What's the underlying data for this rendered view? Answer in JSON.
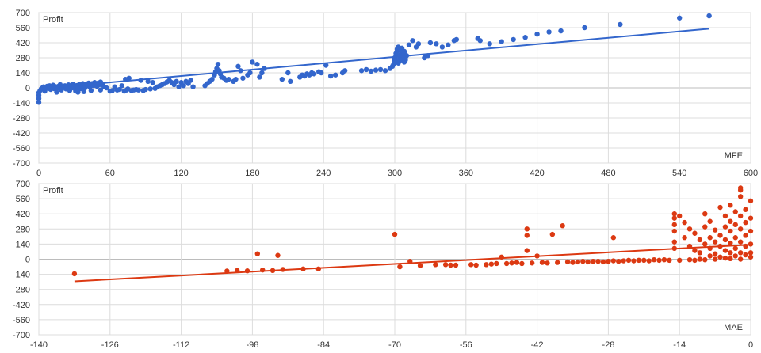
{
  "chart_data": [
    {
      "type": "scatter",
      "title": "",
      "ylabel": "Profit",
      "xlabel": "MFE",
      "xlim": [
        0,
        600
      ],
      "ylim": [
        -700,
        700
      ],
      "x_ticks": [
        0,
        60,
        120,
        180,
        240,
        300,
        360,
        420,
        480,
        540,
        600
      ],
      "y_ticks": [
        700,
        560,
        420,
        280,
        140,
        0,
        -140,
        -280,
        -420,
        -560,
        -700
      ],
      "x_tick_labels": [
        "0",
        "60",
        "120",
        "180",
        "240",
        "300",
        "360",
        "420",
        "480",
        "540",
        "600"
      ],
      "y_tick_labels": [
        "700",
        "560",
        "420",
        "280",
        "140",
        "0",
        "-140",
        "-280",
        "-420",
        "-560",
        "-700"
      ],
      "grid": true,
      "color": "#3366cc",
      "trendline": {
        "x": [
          0,
          565
        ],
        "y": [
          -8,
          550
        ]
      },
      "points": [
        [
          0,
          -135
        ],
        [
          0,
          -100
        ],
        [
          0,
          -70
        ],
        [
          0,
          -45
        ],
        [
          1,
          -25
        ],
        [
          2,
          -10
        ],
        [
          3,
          0
        ],
        [
          4,
          10
        ],
        [
          5,
          -30
        ],
        [
          6,
          5
        ],
        [
          7,
          15
        ],
        [
          8,
          -5
        ],
        [
          9,
          20
        ],
        [
          10,
          -15
        ],
        [
          11,
          8
        ],
        [
          12,
          25
        ],
        [
          13,
          -8
        ],
        [
          14,
          12
        ],
        [
          15,
          -40
        ],
        [
          16,
          0
        ],
        [
          17,
          18
        ],
        [
          18,
          30
        ],
        [
          19,
          -20
        ],
        [
          20,
          10
        ],
        [
          22,
          20
        ],
        [
          23,
          -10
        ],
        [
          24,
          5
        ],
        [
          25,
          28
        ],
        [
          26,
          -25
        ],
        [
          27,
          15
        ],
        [
          28,
          0
        ],
        [
          29,
          35
        ],
        [
          30,
          10
        ],
        [
          31,
          -18
        ],
        [
          32,
          22
        ],
        [
          33,
          5
        ],
        [
          34,
          30
        ],
        [
          35,
          -8
        ],
        [
          36,
          15
        ],
        [
          37,
          40
        ],
        [
          38,
          20
        ],
        [
          39,
          0
        ],
        [
          40,
          35
        ],
        [
          41,
          25
        ],
        [
          42,
          45
        ],
        [
          43,
          10
        ],
        [
          44,
          30
        ],
        [
          45,
          40
        ],
        [
          46,
          20
        ],
        [
          47,
          50
        ],
        [
          48,
          35
        ],
        [
          49,
          15
        ],
        [
          50,
          45
        ],
        [
          51,
          30
        ],
        [
          52,
          55
        ],
        [
          53,
          40
        ],
        [
          54,
          25
        ],
        [
          55,
          10
        ],
        [
          33,
          -40
        ],
        [
          38,
          -35
        ],
        [
          31,
          -30
        ],
        [
          44,
          -25
        ],
        [
          52,
          -20
        ],
        [
          57,
          0
        ],
        [
          60,
          -30
        ],
        [
          62,
          -25
        ],
        [
          64,
          10
        ],
        [
          66,
          -20
        ],
        [
          68,
          -15
        ],
        [
          70,
          20
        ],
        [
          72,
          -30
        ],
        [
          73,
          80
        ],
        [
          74,
          -20
        ],
        [
          75,
          -10
        ],
        [
          76,
          90
        ],
        [
          78,
          -25
        ],
        [
          80,
          -20
        ],
        [
          82,
          -15
        ],
        [
          84,
          -20
        ],
        [
          86,
          70
        ],
        [
          88,
          -25
        ],
        [
          90,
          -15
        ],
        [
          92,
          60
        ],
        [
          94,
          -10
        ],
        [
          96,
          50
        ],
        [
          98,
          -5
        ],
        [
          100,
          10
        ],
        [
          102,
          20
        ],
        [
          104,
          30
        ],
        [
          106,
          40
        ],
        [
          108,
          55
        ],
        [
          110,
          70
        ],
        [
          112,
          50
        ],
        [
          114,
          30
        ],
        [
          116,
          60
        ],
        [
          118,
          10
        ],
        [
          120,
          50
        ],
        [
          122,
          20
        ],
        [
          124,
          60
        ],
        [
          126,
          40
        ],
        [
          128,
          70
        ],
        [
          130,
          10
        ],
        [
          140,
          20
        ],
        [
          142,
          40
        ],
        [
          144,
          60
        ],
        [
          146,
          80
        ],
        [
          148,
          120
        ],
        [
          149,
          150
        ],
        [
          150,
          180
        ],
        [
          151,
          220
        ],
        [
          152,
          160
        ],
        [
          153,
          130
        ],
        [
          154,
          100
        ],
        [
          156,
          90
        ],
        [
          158,
          70
        ],
        [
          160,
          80
        ],
        [
          164,
          60
        ],
        [
          166,
          80
        ],
        [
          168,
          200
        ],
        [
          170,
          160
        ],
        [
          172,
          90
        ],
        [
          176,
          120
        ],
        [
          178,
          140
        ],
        [
          180,
          240
        ],
        [
          184,
          220
        ],
        [
          186,
          100
        ],
        [
          188,
          140
        ],
        [
          190,
          180
        ],
        [
          205,
          80
        ],
        [
          210,
          140
        ],
        [
          212,
          60
        ],
        [
          220,
          100
        ],
        [
          222,
          120
        ],
        [
          224,
          110
        ],
        [
          226,
          130
        ],
        [
          228,
          120
        ],
        [
          230,
          140
        ],
        [
          232,
          130
        ],
        [
          236,
          150
        ],
        [
          238,
          140
        ],
        [
          242,
          210
        ],
        [
          246,
          110
        ],
        [
          250,
          120
        ],
        [
          256,
          140
        ],
        [
          258,
          160
        ],
        [
          272,
          160
        ],
        [
          276,
          170
        ],
        [
          280,
          155
        ],
        [
          284,
          165
        ],
        [
          288,
          170
        ],
        [
          292,
          160
        ],
        [
          296,
          180
        ],
        [
          298,
          200
        ],
        [
          299,
          220
        ],
        [
          300,
          240
        ],
        [
          300,
          260
        ],
        [
          300,
          280
        ],
        [
          301,
          300
        ],
        [
          301,
          320
        ],
        [
          302,
          340
        ],
        [
          302,
          360
        ],
        [
          303,
          380
        ],
        [
          303,
          230
        ],
        [
          304,
          250
        ],
        [
          304,
          270
        ],
        [
          305,
          290
        ],
        [
          305,
          310
        ],
        [
          306,
          330
        ],
        [
          306,
          350
        ],
        [
          306,
          370
        ],
        [
          307,
          260
        ],
        [
          307,
          280
        ],
        [
          307,
          300
        ],
        [
          308,
          320
        ],
        [
          308,
          340
        ],
        [
          308,
          240
        ],
        [
          309,
          260
        ],
        [
          309,
          280
        ],
        [
          310,
          300
        ],
        [
          312,
          400
        ],
        [
          315,
          440
        ],
        [
          318,
          380
        ],
        [
          320,
          410
        ],
        [
          325,
          280
        ],
        [
          328,
          300
        ],
        [
          330,
          420
        ],
        [
          335,
          410
        ],
        [
          340,
          380
        ],
        [
          345,
          400
        ],
        [
          350,
          440
        ],
        [
          352,
          450
        ],
        [
          370,
          460
        ],
        [
          372,
          440
        ],
        [
          380,
          410
        ],
        [
          390,
          430
        ],
        [
          400,
          450
        ],
        [
          410,
          470
        ],
        [
          420,
          500
        ],
        [
          430,
          520
        ],
        [
          440,
          530
        ],
        [
          460,
          560
        ],
        [
          490,
          590
        ],
        [
          540,
          650
        ],
        [
          565,
          670
        ]
      ],
      "annotations": [
        "Profit",
        "MFE"
      ]
    },
    {
      "type": "scatter",
      "title": "",
      "ylabel": "Profit",
      "xlabel": "MAE",
      "xlim": [
        -140,
        0
      ],
      "ylim": [
        -700,
        700
      ],
      "x_ticks": [
        -140,
        -126,
        -112,
        -98,
        -84,
        -70,
        -56,
        -42,
        -28,
        -14,
        0
      ],
      "y_ticks": [
        700,
        560,
        420,
        280,
        140,
        0,
        -140,
        -280,
        -420,
        -560,
        -700
      ],
      "x_tick_labels": [
        "-140",
        "-126",
        "-112",
        "-98",
        "-84",
        "-70",
        "-56",
        "-42",
        "-28",
        "-14",
        "0"
      ],
      "y_tick_labels": [
        "700",
        "560",
        "420",
        "280",
        "140",
        "0",
        "-140",
        "-280",
        "-420",
        "-560",
        "-700"
      ],
      "grid": true,
      "color": "#dc3912",
      "trendline": {
        "x": [
          -133,
          0
        ],
        "y": [
          -205,
          135
        ]
      },
      "points": [
        [
          -133,
          -135
        ],
        [
          -103,
          -110
        ],
        [
          -101,
          -105
        ],
        [
          -99,
          -108
        ],
        [
          -97,
          50
        ],
        [
          -96,
          -100
        ],
        [
          -94,
          -105
        ],
        [
          -93,
          35
        ],
        [
          -92,
          -95
        ],
        [
          -88,
          -90
        ],
        [
          -85,
          -90
        ],
        [
          -70,
          230
        ],
        [
          -69,
          -70
        ],
        [
          -67,
          -20
        ],
        [
          -65,
          -60
        ],
        [
          -62,
          -50
        ],
        [
          -60,
          -50
        ],
        [
          -59,
          -55
        ],
        [
          -58,
          -55
        ],
        [
          -55,
          -50
        ],
        [
          -54,
          -55
        ],
        [
          -52,
          -50
        ],
        [
          -51,
          -45
        ],
        [
          -50,
          -40
        ],
        [
          -49,
          20
        ],
        [
          -48,
          -40
        ],
        [
          -47,
          -35
        ],
        [
          -46,
          -30
        ],
        [
          -45,
          -40
        ],
        [
          -44,
          280
        ],
        [
          -44,
          220
        ],
        [
          -44,
          80
        ],
        [
          -43,
          -35
        ],
        [
          -42,
          30
        ],
        [
          -41,
          -30
        ],
        [
          -40,
          -35
        ],
        [
          -39,
          230
        ],
        [
          -38,
          -30
        ],
        [
          -37,
          310
        ],
        [
          -36,
          -25
        ],
        [
          -35,
          -30
        ],
        [
          -34,
          -25
        ],
        [
          -33,
          -20
        ],
        [
          -32,
          -25
        ],
        [
          -31,
          -20
        ],
        [
          -30,
          -20
        ],
        [
          -29,
          -25
        ],
        [
          -28,
          -20
        ],
        [
          -27,
          200
        ],
        [
          -27,
          -15
        ],
        [
          -26,
          -20
        ],
        [
          -25,
          -15
        ],
        [
          -24,
          -10
        ],
        [
          -23,
          -15
        ],
        [
          -22,
          -10
        ],
        [
          -21,
          -10
        ],
        [
          -20,
          -15
        ],
        [
          -19,
          -5
        ],
        [
          -18,
          -10
        ],
        [
          -17,
          -5
        ],
        [
          -16,
          -10
        ],
        [
          -15,
          420
        ],
        [
          -15,
          380
        ],
        [
          -15,
          320
        ],
        [
          -15,
          260
        ],
        [
          -15,
          160
        ],
        [
          -15,
          100
        ],
        [
          -14,
          -10
        ],
        [
          -14,
          400
        ],
        [
          -13,
          340
        ],
        [
          -13,
          200
        ],
        [
          -12,
          280
        ],
        [
          -12,
          120
        ],
        [
          -12,
          -5
        ],
        [
          -11,
          240
        ],
        [
          -11,
          80
        ],
        [
          -11,
          -10
        ],
        [
          -10,
          180
        ],
        [
          -10,
          60
        ],
        [
          -10,
          0
        ],
        [
          -9,
          420
        ],
        [
          -9,
          300
        ],
        [
          -9,
          140
        ],
        [
          -9,
          -5
        ],
        [
          -8,
          350
        ],
        [
          -8,
          200
        ],
        [
          -8,
          100
        ],
        [
          -8,
          30
        ],
        [
          -7,
          270
        ],
        [
          -7,
          160
        ],
        [
          -7,
          50
        ],
        [
          -7,
          0
        ],
        [
          -6,
          480
        ],
        [
          -6,
          220
        ],
        [
          -6,
          120
        ],
        [
          -6,
          20
        ],
        [
          -5,
          400
        ],
        [
          -5,
          300
        ],
        [
          -5,
          180
        ],
        [
          -5,
          80
        ],
        [
          -5,
          10
        ],
        [
          -4,
          500
        ],
        [
          -4,
          350
        ],
        [
          -4,
          260
        ],
        [
          -4,
          150
        ],
        [
          -4,
          60
        ],
        [
          -4,
          5
        ],
        [
          -3,
          440
        ],
        [
          -3,
          320
        ],
        [
          -3,
          200
        ],
        [
          -3,
          100
        ],
        [
          -3,
          30
        ],
        [
          -2,
          660
        ],
        [
          -2,
          640
        ],
        [
          -2,
          580
        ],
        [
          -2,
          400
        ],
        [
          -2,
          280
        ],
        [
          -2,
          160
        ],
        [
          -2,
          60
        ],
        [
          -2,
          0
        ],
        [
          -1,
          460
        ],
        [
          -1,
          340
        ],
        [
          -1,
          220
        ],
        [
          -1,
          120
        ],
        [
          -1,
          40
        ],
        [
          0,
          540
        ],
        [
          0,
          380
        ],
        [
          0,
          260
        ],
        [
          0,
          140
        ],
        [
          0,
          60
        ],
        [
          0,
          20
        ]
      ],
      "annotations": [
        "Profit",
        "MAE"
      ]
    }
  ]
}
